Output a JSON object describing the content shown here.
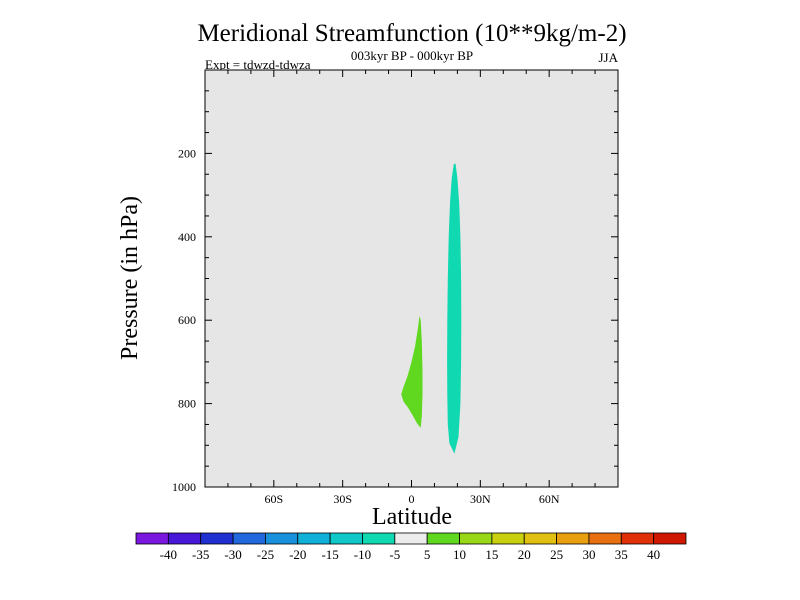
{
  "chart_data": {
    "type": "contour",
    "title": "Meridional Streamfunction (10**9kg/m-2)",
    "subtitle": "003kyr BP - 000kyr BP",
    "experiment": "Expt = tdwzd-tdwza",
    "season": "JJA",
    "xlabel": "Latitude",
    "ylabel": "Pressure (in hPa)",
    "xlim": [
      -90,
      90
    ],
    "ylim": [
      1000,
      0
    ],
    "x_ticks": [
      {
        "value": -60,
        "label": "60S"
      },
      {
        "value": -30,
        "label": "30S"
      },
      {
        "value": 0,
        "label": "0"
      },
      {
        "value": 30,
        "label": "30N"
      },
      {
        "value": 60,
        "label": "60N"
      }
    ],
    "y_ticks": [
      {
        "value": 200,
        "label": "200"
      },
      {
        "value": 400,
        "label": "400"
      },
      {
        "value": 600,
        "label": "600"
      },
      {
        "value": 800,
        "label": "800"
      },
      {
        "value": 1000,
        "label": "1000"
      }
    ],
    "background_color": "#e6e6e6",
    "colorbar": {
      "labels": [
        "-40",
        "-35",
        "-30",
        "-25",
        "-20",
        "-15",
        "-10",
        "-5",
        "5",
        "10",
        "15",
        "20",
        "25",
        "30",
        "35",
        "40"
      ],
      "colors": [
        "#7a18e0",
        "#4818d8",
        "#2030d0",
        "#2068dc",
        "#1890dc",
        "#10b0d8",
        "#10c8c8",
        "#10d8b0",
        "#ececec",
        "#60d820",
        "#98d818",
        "#c8d010",
        "#e0c010",
        "#e8a010",
        "#e87010",
        "#e03008",
        "#d01800"
      ]
    },
    "regions": [
      {
        "name": "5 to 10",
        "color": "#60d820",
        "outline": [
          [
            3.5,
            590
          ],
          [
            2.8,
            620
          ],
          [
            1.5,
            665
          ],
          [
            0,
            700
          ],
          [
            -1.8,
            735
          ],
          [
            -3.5,
            760
          ],
          [
            -4.5,
            778
          ],
          [
            -3.5,
            795
          ],
          [
            -1.5,
            810
          ],
          [
            0.5,
            828
          ],
          [
            2.5,
            848
          ],
          [
            4,
            858
          ],
          [
            4.5,
            830
          ],
          [
            4.8,
            780
          ],
          [
            4.8,
            720
          ],
          [
            4.5,
            650
          ],
          [
            4,
            600
          ]
        ]
      },
      {
        "name": "-10 to -5",
        "color": "#10d8b0",
        "outline": [
          [
            18.5,
            225
          ],
          [
            17.5,
            260
          ],
          [
            16.8,
            320
          ],
          [
            16.2,
            400
          ],
          [
            15.8,
            500
          ],
          [
            15.6,
            600
          ],
          [
            15.5,
            700
          ],
          [
            15.6,
            780
          ],
          [
            15.8,
            850
          ],
          [
            16.5,
            895
          ],
          [
            18.7,
            920
          ],
          [
            20.5,
            880
          ],
          [
            21.3,
            800
          ],
          [
            21.6,
            700
          ],
          [
            21.7,
            600
          ],
          [
            21.6,
            500
          ],
          [
            21.3,
            400
          ],
          [
            20.8,
            320
          ],
          [
            20,
            260
          ],
          [
            19.2,
            225
          ]
        ]
      }
    ]
  }
}
